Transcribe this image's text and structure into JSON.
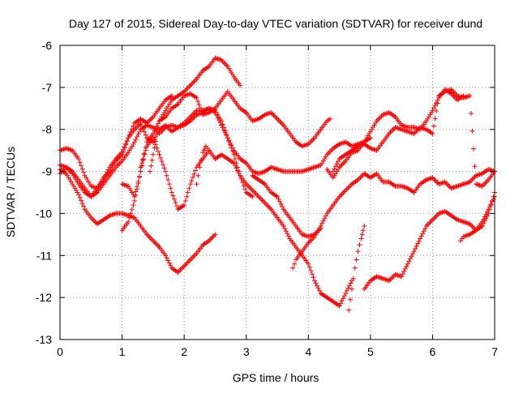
{
  "chart_data": {
    "type": "scatter",
    "title": "Day 127 of 2015, Sidereal Day-to-day VTEC variation (SDTVAR) for receiver dund",
    "xlabel": "GPS time / hours",
    "ylabel": "SDTVAR / TECUs",
    "xlim": [
      0,
      7
    ],
    "ylim": [
      -13,
      -6
    ],
    "xticks": [
      "0",
      "1",
      "2",
      "3",
      "4",
      "5",
      "6",
      "7"
    ],
    "yticks": [
      "-6",
      "-7",
      "-8",
      "-9",
      "-10",
      "-11",
      "-12",
      "-13"
    ],
    "grid": true,
    "marker": "+",
    "colors": {
      "series": "#ff0000",
      "grid": "#999999",
      "axes": "#000000"
    },
    "series": [
      {
        "x": [
          0.0,
          0.1,
          0.2,
          0.3,
          0.4,
          0.5,
          0.6,
          0.7,
          0.8,
          0.9,
          1.0,
          1.1,
          1.2,
          1.3,
          1.4,
          1.5,
          1.6,
          1.7,
          1.8
        ],
        "y": [
          -8.5,
          -8.45,
          -8.5,
          -8.7,
          -9.1,
          -9.35,
          -9.4,
          -9.2,
          -8.9,
          -8.7,
          -8.55,
          -8.2,
          -7.85,
          -7.75,
          -7.85,
          -7.7,
          -7.5,
          -7.3,
          -7.2
        ]
      },
      {
        "x": [
          1.0,
          1.1,
          1.2,
          1.3,
          1.4,
          1.5,
          1.6,
          1.7,
          1.8,
          1.9,
          2.0,
          2.1,
          2.2,
          2.3,
          2.4,
          2.5,
          2.6,
          2.7,
          2.8,
          2.9
        ],
        "y": [
          -9.3,
          -9.35,
          -9.6,
          -9.0,
          -8.3,
          -8.1,
          -7.8,
          -7.55,
          -7.3,
          -7.2,
          -7.1,
          -6.95,
          -6.8,
          -6.6,
          -6.5,
          -6.3,
          -6.35,
          -6.5,
          -6.75,
          -6.95
        ]
      },
      {
        "x": [
          1.45,
          1.5,
          1.6,
          1.7,
          1.8,
          1.9,
          2.0,
          2.1,
          2.2,
          2.3,
          2.4,
          2.5,
          2.6,
          2.7,
          2.8,
          2.9,
          3.0,
          3.1,
          3.2,
          3.3,
          3.4,
          3.5,
          3.6,
          3.7,
          3.8,
          3.9,
          4.0,
          4.1,
          4.2,
          4.3,
          4.35
        ],
        "y": [
          -9.0,
          -8.6,
          -7.8,
          -7.7,
          -7.5,
          -7.4,
          -7.2,
          -7.15,
          -7.25,
          -7.65,
          -7.6,
          -7.5,
          -7.3,
          -7.1,
          -7.3,
          -7.5,
          -7.6,
          -7.8,
          -7.75,
          -7.65,
          -7.6,
          -7.75,
          -7.9,
          -8.1,
          -8.3,
          -8.4,
          -8.35,
          -8.2,
          -8.0,
          -7.8,
          -7.75
        ]
      },
      {
        "x": [
          0.0,
          0.1,
          0.2,
          0.3,
          0.4,
          0.5,
          0.6,
          0.7,
          0.8,
          0.9,
          1.0,
          1.1,
          1.2,
          1.3,
          1.4,
          1.5,
          1.6,
          1.7,
          1.8,
          1.9,
          2.0,
          2.1,
          2.2,
          2.3,
          2.4,
          2.5,
          2.6,
          2.7,
          2.8,
          2.9,
          3.0,
          3.1,
          3.2,
          3.3,
          3.4,
          3.5,
          3.6,
          3.7,
          3.8,
          3.9,
          4.0,
          4.1,
          4.2,
          4.3,
          4.4,
          4.5,
          4.6,
          4.7,
          4.8,
          4.9,
          5.0
        ],
        "y": [
          -8.85,
          -8.9,
          -9.05,
          -9.3,
          -9.5,
          -9.6,
          -9.4,
          -9.15,
          -9.0,
          -8.75,
          -8.6,
          -8.2,
          -8.0,
          -7.85,
          -8.2,
          -8.3,
          -8.0,
          -7.9,
          -8.05,
          -7.95,
          -7.85,
          -7.7,
          -7.55,
          -7.55,
          -7.5,
          -7.6,
          -7.9,
          -8.2,
          -8.5,
          -8.7,
          -8.8,
          -9.0,
          -9.05,
          -9.0,
          -8.9,
          -8.95,
          -9.0,
          -9.0,
          -9.0,
          -9.0,
          -8.95,
          -8.9,
          -8.85,
          -8.6,
          -8.45,
          -8.35,
          -8.3,
          -8.4,
          -8.35,
          -8.3,
          -8.2
        ]
      },
      {
        "x": [
          0.0,
          0.1,
          0.2,
          0.3,
          0.4,
          0.5,
          0.6,
          0.7,
          0.8,
          0.9,
          1.0,
          1.1,
          1.2,
          1.3,
          1.4,
          1.5,
          1.6,
          1.7,
          1.8,
          1.9,
          2.0,
          2.1,
          2.2,
          2.3,
          2.4,
          2.5,
          2.6,
          2.7,
          2.8,
          2.9,
          3.0,
          3.1
        ],
        "y": [
          -9.05,
          -8.9,
          -9.0,
          -9.2,
          -9.4,
          -9.6,
          -9.5,
          -9.3,
          -9.1,
          -8.9,
          -8.75,
          -8.55,
          -8.3,
          -8.0,
          -7.9,
          -7.95,
          -8.1,
          -7.95,
          -7.9,
          -7.95,
          -7.9,
          -7.8,
          -7.65,
          -7.6,
          -7.5,
          -7.55,
          -7.8,
          -8.2,
          -8.6,
          -9.1,
          -9.5,
          -9.6
        ]
      },
      {
        "x": [
          1.3,
          1.4,
          1.5,
          1.6,
          1.7,
          1.8,
          1.9,
          2.0,
          2.1,
          2.2,
          2.3,
          2.4,
          2.5,
          2.6,
          2.7,
          2.8,
          2.9,
          3.0,
          3.1,
          3.2,
          3.3,
          3.4,
          3.5,
          3.6,
          3.7,
          3.8,
          3.9,
          4.0,
          4.1,
          4.2,
          4.3,
          4.4,
          4.5,
          4.6,
          4.7
        ],
        "y": [
          -8.9,
          -8.4,
          -8.2,
          -8.6,
          -9.0,
          -9.5,
          -9.9,
          -9.8,
          -9.3,
          -8.9,
          -8.7,
          -8.5,
          -8.7,
          -8.6,
          -8.7,
          -8.8,
          -9.1,
          -9.3,
          -9.45,
          -9.6,
          -9.75,
          -9.9,
          -10.1,
          -10.3,
          -10.6,
          -10.8,
          -11.0,
          -11.2,
          -11.6,
          -11.9,
          -12.0,
          -12.1,
          -12.2,
          -11.9,
          -11.6
        ]
      },
      {
        "x": [
          0.0,
          0.1,
          0.2,
          0.3,
          0.4,
          0.5,
          0.6,
          0.7,
          0.8,
          0.9,
          1.0,
          1.1,
          1.2,
          1.3,
          1.4,
          1.5,
          1.6,
          1.7,
          1.8,
          1.9,
          2.0,
          2.1,
          2.2,
          2.3,
          2.4,
          2.5
        ],
        "y": [
          -8.95,
          -9.05,
          -9.3,
          -9.55,
          -9.9,
          -10.1,
          -10.25,
          -10.15,
          -10.05,
          -10.0,
          -10.0,
          -10.05,
          -10.1,
          -10.3,
          -10.5,
          -10.65,
          -10.8,
          -11.0,
          -11.3,
          -11.4,
          -11.25,
          -11.1,
          -10.95,
          -10.75,
          -10.65,
          -10.5
        ]
      },
      {
        "x": [
          1.0,
          1.1,
          1.2,
          1.3,
          1.35
        ],
        "y": [
          -10.4,
          -10.2,
          -9.7,
          -9.0,
          -8.6
        ]
      },
      {
        "x": [
          2.2,
          2.25,
          2.3,
          2.35,
          2.4
        ],
        "y": [
          -9.3,
          -8.9,
          -8.55,
          -8.4,
          -8.5
        ]
      },
      {
        "x": [
          3.1,
          3.2,
          3.3,
          3.4,
          3.5,
          3.6,
          3.7,
          3.8,
          3.9,
          4.0,
          4.1,
          4.2
        ],
        "y": [
          -9.1,
          -9.2,
          -9.3,
          -9.5,
          -9.6,
          -9.9,
          -10.1,
          -10.3,
          -10.5,
          -10.55,
          -10.5,
          -10.35
        ]
      },
      {
        "x": [
          4.3,
          4.4,
          4.5,
          4.6,
          4.7,
          4.8,
          4.9,
          5.0,
          5.1,
          5.2,
          5.3,
          5.4,
          5.5,
          5.6,
          5.7,
          5.8,
          5.9,
          6.0,
          6.1,
          6.2,
          6.3,
          6.4,
          6.5
        ],
        "y": [
          -8.95,
          -9.15,
          -8.9,
          -8.75,
          -8.55,
          -8.5,
          -8.3,
          -8.05,
          -7.8,
          -7.65,
          -7.6,
          -7.7,
          -7.9,
          -7.95,
          -7.95,
          -8.0,
          -7.8,
          -7.55,
          -7.25,
          -7.05,
          -7.15,
          -7.3,
          -7.2
        ]
      },
      {
        "x": [
          3.75,
          3.8,
          3.9,
          4.0,
          4.1,
          4.2,
          4.3,
          4.4,
          4.5,
          4.6,
          4.7,
          4.8,
          4.9,
          5.0,
          5.1,
          5.2,
          5.3,
          5.4,
          5.5,
          5.6,
          5.7,
          5.8,
          5.9,
          6.0,
          6.1,
          6.2,
          6.3,
          6.4,
          6.5,
          6.6,
          6.7,
          6.8,
          6.9,
          7.0
        ],
        "y": [
          -11.3,
          -11.1,
          -10.9,
          -10.7,
          -10.55,
          -10.3,
          -10.0,
          -9.8,
          -9.6,
          -9.45,
          -9.3,
          -9.2,
          -9.05,
          -9.15,
          -9.05,
          -9.25,
          -9.25,
          -9.35,
          -9.35,
          -9.4,
          -9.5,
          -9.3,
          -9.2,
          -9.15,
          -9.3,
          -9.25,
          -9.4,
          -9.35,
          -9.3,
          -9.25,
          -9.1,
          -9.05,
          -8.95,
          -9.0
        ]
      },
      {
        "x": [
          4.4,
          4.5,
          4.6,
          4.7,
          4.8,
          4.9,
          5.0,
          5.1,
          5.2,
          5.3,
          5.4,
          5.5,
          5.6,
          5.7,
          5.8,
          5.9,
          6.0,
          6.1,
          6.2,
          6.3,
          6.4,
          6.5,
          6.6,
          6.7,
          6.8,
          6.9,
          7.0
        ],
        "y": [
          -9.0,
          -8.7,
          -8.6,
          -8.5,
          -8.4,
          -8.35,
          -8.45,
          -8.5,
          -8.3,
          -8.1,
          -7.95,
          -8.0,
          -8.05,
          -8.1,
          -7.95,
          -8.0,
          -8.1,
          -7.2,
          -7.1,
          -7.05,
          -7.2,
          -7.25,
          -7.2,
          -9.3,
          -9.35,
          -9.2,
          -9.0
        ]
      },
      {
        "x": [
          4.65,
          4.7,
          4.75,
          4.8,
          4.85,
          4.9
        ],
        "y": [
          -12.3,
          -11.8,
          -11.3,
          -10.9,
          -10.6,
          -10.3
        ]
      },
      {
        "x": [
          4.9,
          5.0,
          5.1,
          5.2,
          5.3,
          5.4,
          5.5,
          5.6,
          5.7,
          5.8,
          5.9,
          6.0,
          6.1,
          6.2,
          6.3,
          6.4,
          6.5,
          6.6,
          6.7,
          6.8,
          6.9,
          7.0
        ],
        "y": [
          -11.8,
          -11.6,
          -11.5,
          -11.55,
          -11.6,
          -11.45,
          -11.5,
          -11.2,
          -10.9,
          -10.6,
          -10.3,
          -10.15,
          -10.0,
          -9.95,
          -10.05,
          -10.15,
          -10.2,
          -10.25,
          -10.4,
          -10.3,
          -10.0,
          -9.5
        ]
      },
      {
        "x": [
          6.45,
          6.5,
          6.6,
          6.7,
          6.8,
          6.9,
          7.0
        ],
        "y": [
          -10.65,
          -10.55,
          -10.5,
          -10.4,
          -10.2,
          -9.9,
          -9.6
        ]
      }
    ]
  }
}
